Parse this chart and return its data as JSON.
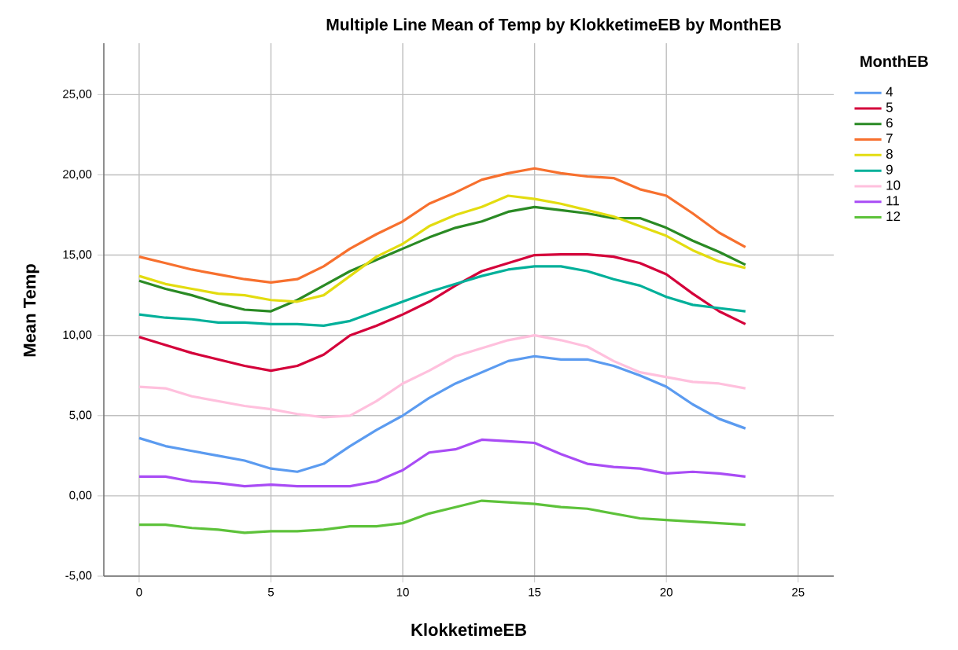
{
  "chart_data": {
    "type": "line",
    "title": "Multiple Line Mean of Temp by KlokketimeEB by MonthEB",
    "xlabel": "KlokketimeEB",
    "ylabel": "Mean Temp",
    "legend_title": "MonthEB",
    "legend": "right",
    "grid": true,
    "marker": "none",
    "line_style": "solid",
    "x": [
      0,
      1,
      2,
      3,
      4,
      5,
      6,
      7,
      8,
      9,
      10,
      11,
      12,
      13,
      14,
      15,
      16,
      17,
      18,
      19,
      20,
      21,
      22,
      23
    ],
    "xlim": [
      -1.34,
      26.35
    ],
    "xticks": [
      0,
      5,
      10,
      15,
      20,
      25
    ],
    "ylim": [
      -5,
      28.2
    ],
    "yticks": [
      {
        "value": -5,
        "label": "-5,00"
      },
      {
        "value": 0,
        "label": "0,00"
      },
      {
        "value": 5,
        "label": "5,00"
      },
      {
        "value": 10,
        "label": "10,00"
      },
      {
        "value": 15,
        "label": "15,00"
      },
      {
        "value": 20,
        "label": "20,00"
      },
      {
        "value": 25,
        "label": "25,00"
      }
    ],
    "series": [
      {
        "name": "4",
        "color": "#5b9bf0",
        "values": [
          3.6,
          3.1,
          2.8,
          2.5,
          2.2,
          1.7,
          1.5,
          2.0,
          3.1,
          4.1,
          5.0,
          6.1,
          7.0,
          7.7,
          8.4,
          8.7,
          8.5,
          8.5,
          8.1,
          7.5,
          6.8,
          5.7,
          4.8,
          4.2
        ]
      },
      {
        "name": "5",
        "color": "#d4003a",
        "values": [
          9.9,
          9.4,
          8.9,
          8.5,
          8.1,
          7.8,
          8.1,
          8.8,
          10.0,
          10.6,
          11.3,
          12.1,
          13.1,
          14.0,
          14.5,
          15.0,
          15.05,
          15.05,
          14.9,
          14.5,
          13.8,
          12.6,
          11.5,
          10.7
        ]
      },
      {
        "name": "6",
        "color": "#2a8a24",
        "values": [
          13.4,
          12.9,
          12.5,
          12.0,
          11.6,
          11.5,
          12.2,
          13.1,
          14.0,
          14.7,
          15.4,
          16.1,
          16.7,
          17.1,
          17.7,
          18.0,
          17.8,
          17.6,
          17.3,
          17.3,
          16.7,
          15.9,
          15.2,
          14.4
        ]
      },
      {
        "name": "7",
        "color": "#f7702e",
        "values": [
          14.9,
          14.5,
          14.1,
          13.8,
          13.5,
          13.3,
          13.5,
          14.3,
          15.4,
          16.3,
          17.1,
          18.2,
          18.9,
          19.7,
          20.1,
          20.4,
          20.1,
          19.9,
          19.8,
          19.1,
          18.7,
          17.6,
          16.4,
          15.5
        ]
      },
      {
        "name": "8",
        "color": "#e3dc10",
        "values": [
          13.7,
          13.2,
          12.9,
          12.6,
          12.5,
          12.2,
          12.1,
          12.5,
          13.7,
          14.9,
          15.7,
          16.8,
          17.5,
          18.0,
          18.7,
          18.5,
          18.2,
          17.8,
          17.4,
          16.8,
          16.2,
          15.3,
          14.6,
          14.2
        ]
      },
      {
        "name": "9",
        "color": "#00b09a",
        "values": [
          11.3,
          11.1,
          11.0,
          10.8,
          10.8,
          10.7,
          10.7,
          10.6,
          10.9,
          11.5,
          12.1,
          12.7,
          13.2,
          13.7,
          14.1,
          14.3,
          14.3,
          14.0,
          13.5,
          13.1,
          12.4,
          11.9,
          11.7,
          11.5
        ]
      },
      {
        "name": "10",
        "color": "#ffc0dd",
        "values": [
          6.8,
          6.7,
          6.2,
          5.9,
          5.6,
          5.4,
          5.1,
          4.9,
          5.0,
          5.9,
          7.0,
          7.8,
          8.7,
          9.2,
          9.7,
          10.0,
          9.7,
          9.3,
          8.4,
          7.7,
          7.4,
          7.1,
          7.0,
          6.7
        ]
      },
      {
        "name": "11",
        "color": "#a94cf5",
        "values": [
          1.2,
          1.2,
          0.9,
          0.8,
          0.6,
          0.7,
          0.6,
          0.6,
          0.6,
          0.9,
          1.6,
          2.7,
          2.9,
          3.5,
          3.4,
          3.3,
          2.6,
          2.0,
          1.8,
          1.7,
          1.4,
          1.5,
          1.4,
          1.2
        ]
      },
      {
        "name": "12",
        "color": "#5dc23a",
        "values": [
          -1.8,
          -1.8,
          -2.0,
          -2.1,
          -2.3,
          -2.2,
          -2.2,
          -2.1,
          -1.9,
          -1.9,
          -1.7,
          -1.1,
          -0.7,
          -0.3,
          -0.4,
          -0.5,
          -0.7,
          -0.8,
          -1.1,
          -1.4,
          -1.5,
          -1.6,
          -1.7,
          -1.8
        ]
      }
    ]
  }
}
